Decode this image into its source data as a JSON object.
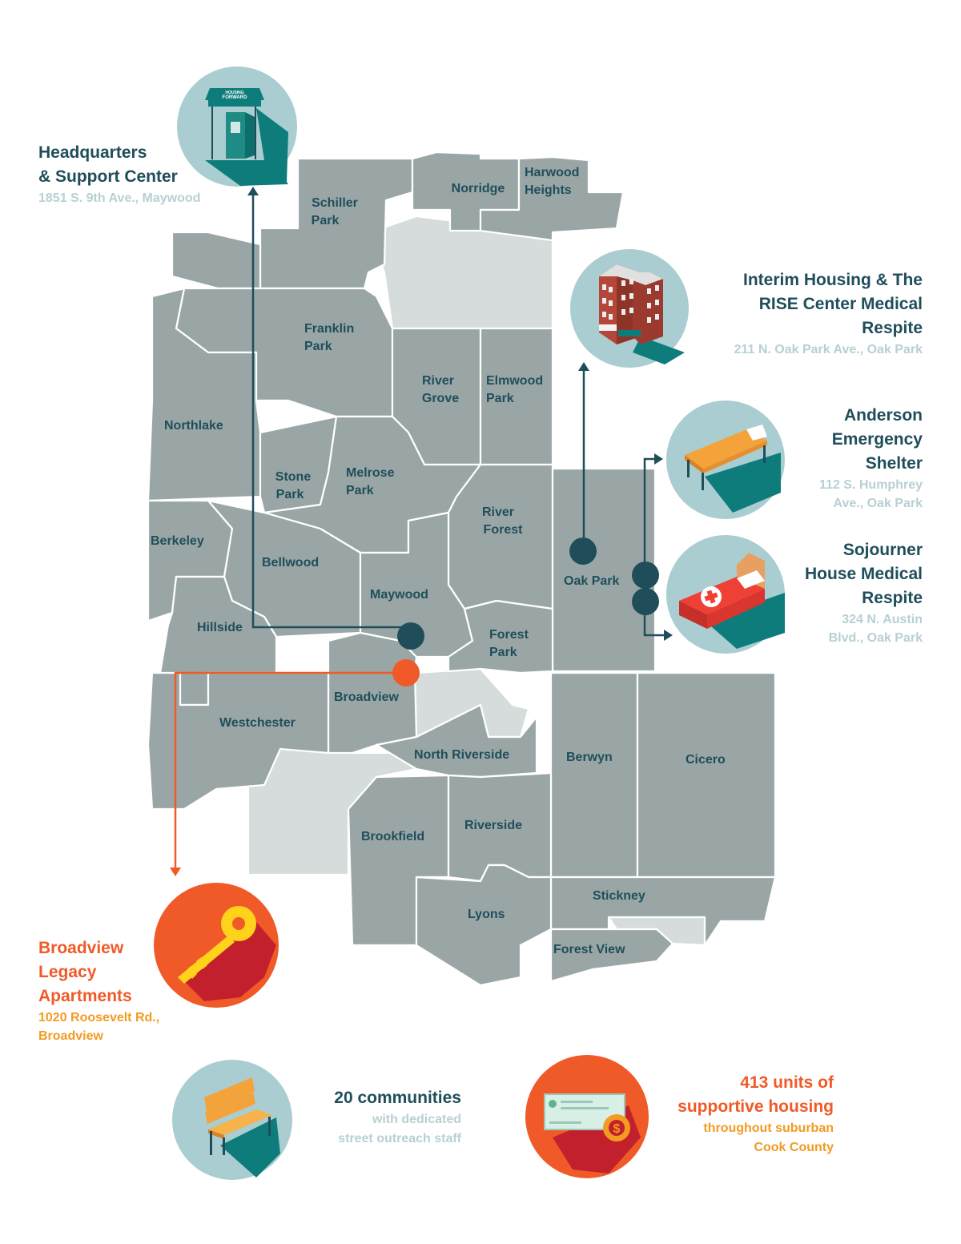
{
  "map": {
    "towns": {
      "schiller_park": [
        "Schiller",
        "Park"
      ],
      "norridge": "Norridge",
      "harwood_heights": [
        "Harwood",
        "Heights"
      ],
      "franklin_park": [
        "Franklin",
        "Park"
      ],
      "river_grove": [
        "River",
        "Grove"
      ],
      "elmwood_park": [
        "Elmwood",
        "Park"
      ],
      "northlake": "Northlake",
      "stone_park": [
        "Stone",
        "Park"
      ],
      "melrose_park": [
        "Melrose",
        "Park"
      ],
      "river_forest": [
        "River",
        "Forest"
      ],
      "berkeley": "Berkeley",
      "bellwood": "Bellwood",
      "maywood": "Maywood",
      "oak_park": "Oak Park",
      "hillside": "Hillside",
      "forest_park": [
        "Forest",
        "Park"
      ],
      "broadview": "Broadview",
      "westchester": "Westchester",
      "north_riverside": "North Riverside",
      "berwyn": "Berwyn",
      "cicero": "Cicero",
      "brookfield": "Brookfield",
      "riverside": "Riverside",
      "stickney": "Stickney",
      "lyons": "Lyons",
      "forest_view": "Forest View"
    },
    "sign_text": [
      "HOUSING",
      "FORWARD"
    ]
  },
  "locations": {
    "headquarters": {
      "title_lines": [
        "Headquarters",
        "& Support Center"
      ],
      "address": "1851 S. 9th Ave., Maywood",
      "icon": "door-canopy-icon"
    },
    "interim_housing": {
      "title_lines": [
        "Interim Housing & The",
        "RISE Center Medical",
        "Respite"
      ],
      "address": "211 N. Oak Park Ave., Oak Park",
      "icon": "apartment-building-icon"
    },
    "anderson": {
      "title_lines": [
        "Anderson",
        "Emergency",
        "Shelter"
      ],
      "address_lines": [
        "112 S. Humphrey",
        "Ave.,  Oak Park"
      ],
      "icon": "cot-icon"
    },
    "sojourner": {
      "title_lines": [
        "Sojourner",
        "House Medical",
        "Respite"
      ],
      "address_lines": [
        "324 N. Austin",
        "Blvd., Oak Park"
      ],
      "icon": "medical-bed-icon"
    },
    "broadview_legacy": {
      "title_lines": [
        "Broadview",
        "Legacy",
        "Apartments"
      ],
      "address_lines": [
        "1020 Roosevelt Rd.,",
        "Broadview"
      ],
      "icon": "key-icon"
    }
  },
  "stats": {
    "outreach": {
      "title": "20 communities",
      "sub_lines": [
        "with dedicated",
        "street outreach staff"
      ],
      "icon": "bench-icon"
    },
    "units": {
      "title_lines": [
        "413 units of",
        "supportive housing"
      ],
      "sub_lines": [
        "throughout suburban",
        "Cook County"
      ],
      "icon": "check-dollar-icon"
    }
  },
  "colors": {
    "town_fill": "#9aa6a6",
    "unincorporated_fill": "#d5dcdb",
    "dark_teal": "#1f4e5a",
    "teal": "#0e7c7b",
    "light_teal_circle": "#a9cdd0",
    "orange": "#f05a28",
    "gold": "#f39a22",
    "address_blue": "#b7d0d3"
  }
}
